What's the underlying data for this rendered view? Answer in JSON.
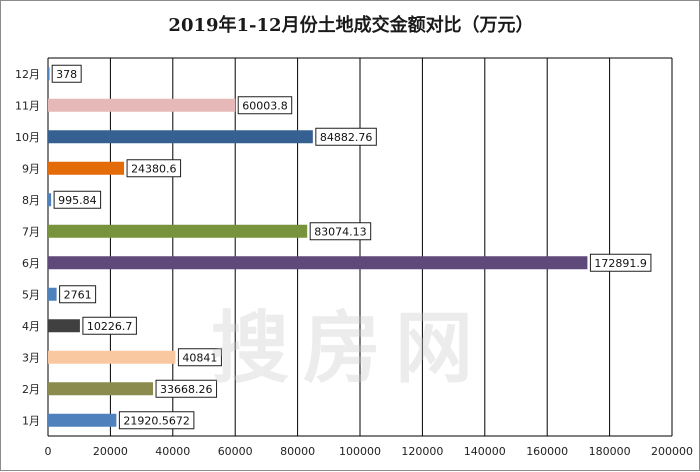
{
  "chart_data": {
    "type": "bar",
    "orientation": "horizontal",
    "title": "2019年1-12月份土地成交金额对比（万元）",
    "xlabel": "",
    "ylabel": "",
    "xlim": [
      0,
      200000
    ],
    "x_ticks": [
      "0",
      "20000",
      "40000",
      "60000",
      "80000",
      "100000",
      "120000",
      "140000",
      "160000",
      "180000",
      "200000"
    ],
    "grid": true,
    "legend": "none",
    "categories": [
      "1月",
      "2月",
      "3月",
      "4月",
      "5月",
      "6月",
      "7月",
      "8月",
      "9月",
      "10月",
      "11月",
      "12月"
    ],
    "values": [
      21920.5672,
      33668.26,
      40841,
      10226.7,
      2761,
      172891.9,
      83074.13,
      995.84,
      24380.6,
      84882.76,
      60003.8,
      378
    ],
    "value_labels": [
      "21920.5672",
      "33668.26",
      "40841",
      "10226.7",
      "2761",
      "172891.9",
      "83074.13",
      "995.84",
      "24380.6",
      "84882.76",
      "60003.8",
      "378"
    ],
    "bar_colors": [
      "#4f81bd",
      "#8b8b4d",
      "#fac8a0",
      "#404040",
      "#4f81bd",
      "#5f497a",
      "#77933c",
      "#4f81bd",
      "#e36c09",
      "#366092",
      "#e6b9b8",
      "#4f81bd"
    ]
  },
  "watermark": "搜房网"
}
